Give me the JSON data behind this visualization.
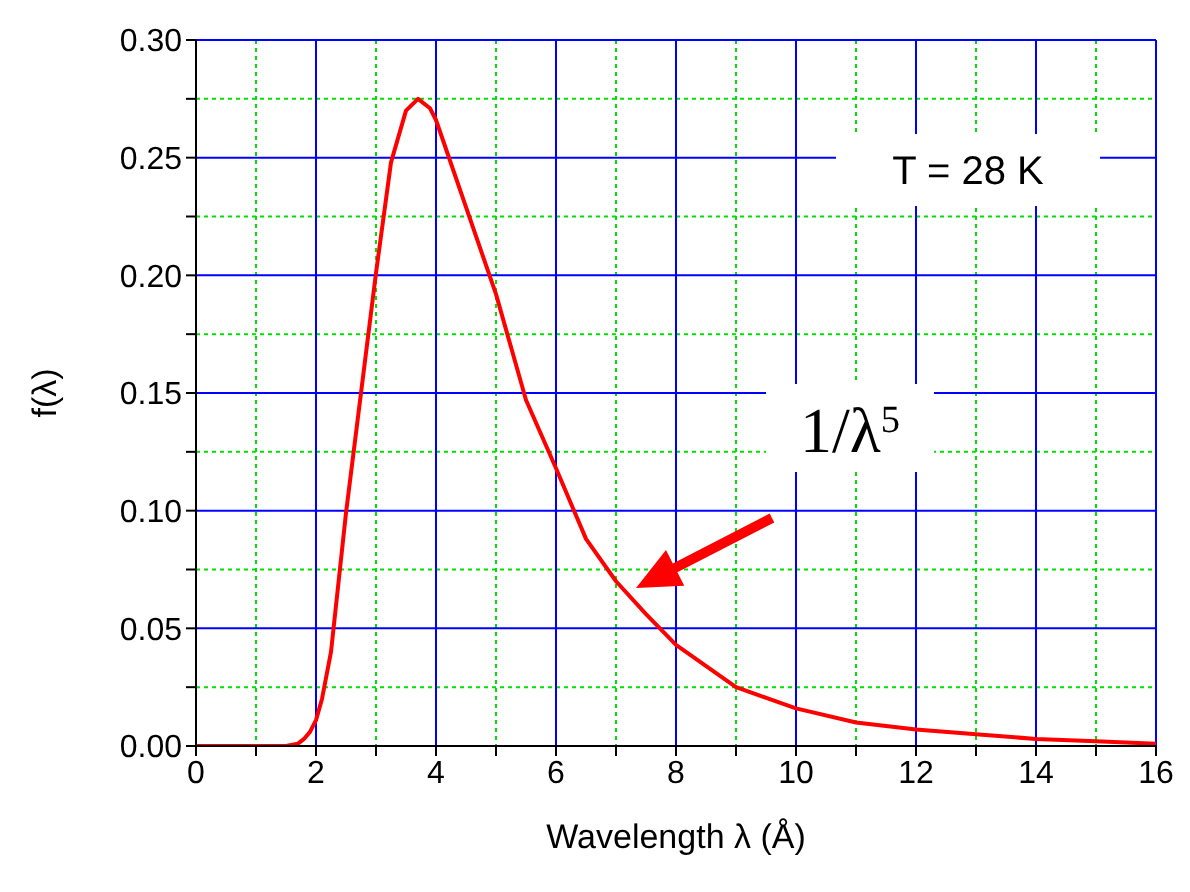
{
  "chart_data": {
    "type": "line",
    "xlabel": "Wavelength λ (Å)",
    "ylabel": "f(λ)",
    "x": [
      0,
      1.5,
      1.7,
      1.8,
      1.9,
      2.0,
      2.1,
      2.25,
      2.5,
      2.75,
      3.0,
      3.25,
      3.5,
      3.7,
      3.9,
      4.0,
      4.5,
      5.0,
      5.5,
      6.0,
      6.5,
      7.0,
      7.5,
      8.0,
      9.0,
      10.0,
      11.0,
      12.0,
      13.0,
      14.0,
      15.0,
      16.0
    ],
    "series": [
      {
        "color": "#ff0000",
        "values": [
          0,
          0,
          0.001,
          0.003,
          0.006,
          0.011,
          0.02,
          0.04,
          0.099,
          0.15,
          0.201,
          0.248,
          0.27,
          0.275,
          0.271,
          0.266,
          0.229,
          0.192,
          0.147,
          0.118,
          0.088,
          0.07,
          0.056,
          0.043,
          0.025,
          0.016,
          0.01,
          0.007,
          0.005,
          0.003,
          0.002,
          0.001
        ]
      }
    ],
    "xlim": [
      0,
      16
    ],
    "xticks": [
      0,
      {
        "value": 1,
        "label": null
      },
      2,
      {
        "value": 3,
        "label": null
      },
      4,
      {
        "value": 5,
        "label": null
      },
      6,
      {
        "value": 7,
        "label": null
      },
      8,
      {
        "value": 9,
        "label": null
      },
      10,
      {
        "value": 11,
        "label": null
      },
      12,
      {
        "value": 13,
        "label": null
      },
      14,
      {
        "value": 15,
        "label": null
      },
      16
    ],
    "ylim": [
      0,
      0.3
    ],
    "yticks": [
      {
        "value": 0,
        "label": "0.00"
      },
      {
        "value": 0.025,
        "label": null
      },
      {
        "value": 0.05,
        "label": "0.05"
      },
      {
        "value": 0.075,
        "label": null
      },
      {
        "value": 0.1,
        "label": "0.10"
      },
      {
        "value": 0.125,
        "label": null
      },
      {
        "value": 0.15,
        "label": "0.15"
      },
      {
        "value": 0.175,
        "label": null
      },
      {
        "value": 0.2,
        "label": "0.20"
      },
      {
        "value": 0.225,
        "label": null
      },
      {
        "value": 0.25,
        "label": "0.25"
      },
      {
        "value": 0.275,
        "label": null
      },
      {
        "value": 0.3,
        "label": "0.30"
      }
    ],
    "grid": true,
    "marker": "none",
    "line_style": "solid",
    "annotations": [
      "T = 28 K",
      "1/λ$^{5}$"
    ]
  }
}
